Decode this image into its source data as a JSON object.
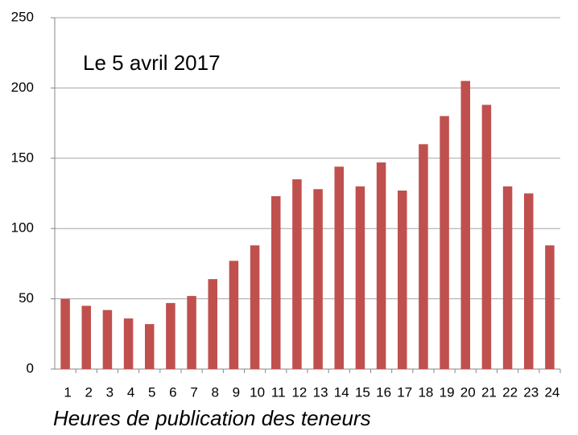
{
  "chart_data": {
    "type": "bar",
    "annotation": "Le 5 avril 2017",
    "x_label": "Heures de publication des teneurs",
    "categories": [
      "1",
      "2",
      "3",
      "4",
      "5",
      "6",
      "7",
      "8",
      "9",
      "10",
      "11",
      "12",
      "13",
      "14",
      "15",
      "16",
      "17",
      "18",
      "19",
      "20",
      "21",
      "22",
      "23",
      "24"
    ],
    "values": [
      50,
      45,
      42,
      36,
      32,
      47,
      52,
      64,
      77,
      88,
      123,
      135,
      128,
      144,
      130,
      147,
      127,
      160,
      180,
      205,
      188,
      130,
      125,
      88
    ],
    "color": "#c0504d",
    "ylim": [
      0,
      250
    ],
    "yticks": [
      0,
      50,
      100,
      150,
      200,
      250
    ],
    "grid": true
  }
}
